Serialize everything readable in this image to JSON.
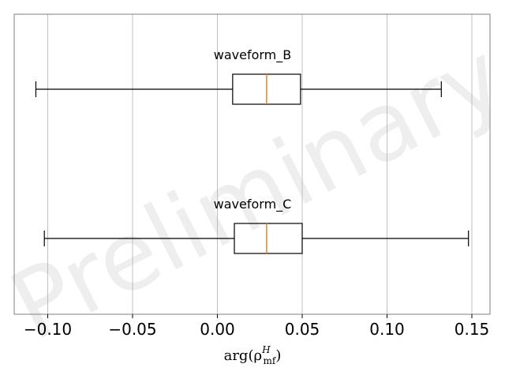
{
  "chart_data": {
    "type": "boxplot",
    "orientation": "horizontal",
    "xlabel": "arg(ρ",
    "xlabel_sup": "H",
    "xlabel_sub": "mf",
    "xlabel_close": ")",
    "xlim": [
      -0.12,
      0.16
    ],
    "xticks": [
      -0.1,
      -0.05,
      0.0,
      0.05,
      0.1,
      0.15
    ],
    "xtick_labels": [
      "−0.10",
      "−0.05",
      "0.00",
      "0.05",
      "0.10",
      "0.15"
    ],
    "grid": "vertical",
    "watermark": "Preliminary",
    "series": [
      {
        "name": "waveform_B",
        "whisker_low": -0.107,
        "q1": 0.009,
        "median": 0.029,
        "q3": 0.049,
        "whisker_high": 0.132
      },
      {
        "name": "waveform_C",
        "whisker_low": -0.102,
        "q1": 0.01,
        "median": 0.029,
        "q3": 0.05,
        "whisker_high": 0.148
      }
    ],
    "colors": {
      "box": "#000000",
      "median": "#ff7f0e",
      "grid": "#b0b0b0",
      "frame": "#808080"
    }
  }
}
